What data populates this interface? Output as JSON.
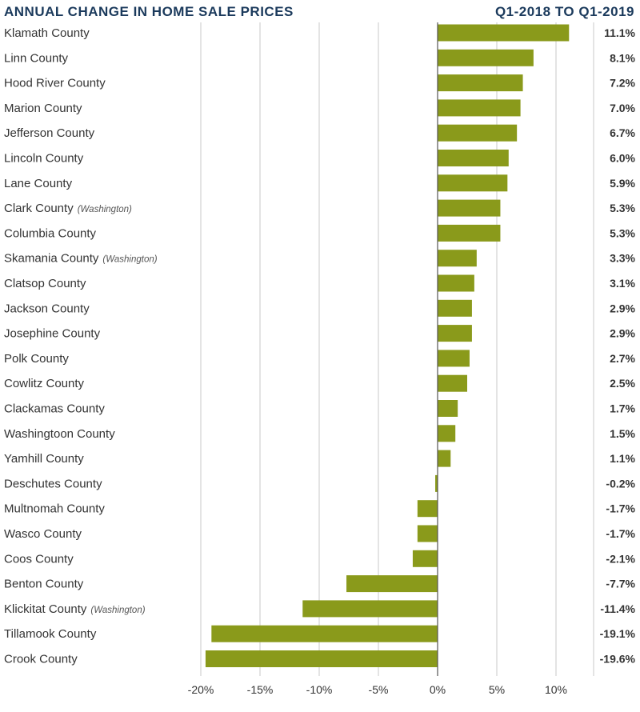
{
  "chart_data": {
    "type": "bar",
    "orientation": "horizontal",
    "title": "ANNUAL CHANGE IN HOME SALE PRICES",
    "subtitle": "Q1-2018 TO Q1-2019",
    "bar_color": "#8a9a1b",
    "title_color": "#1b3a5c",
    "xlim": [
      -20,
      12
    ],
    "xticks": [
      -20,
      -15,
      -10,
      -5,
      0,
      5,
      10
    ],
    "xtick_labels": [
      "-20%",
      "-15%",
      "-10%",
      "-5%",
      "0%",
      "5%",
      "10%"
    ],
    "grid": true,
    "categories": [
      {
        "name": "Klamath County",
        "note": "",
        "value": 11.1,
        "label": "11.1%"
      },
      {
        "name": "Linn County",
        "note": "",
        "value": 8.1,
        "label": "8.1%"
      },
      {
        "name": "Hood River County",
        "note": "",
        "value": 7.2,
        "label": "7.2%"
      },
      {
        "name": "Marion County",
        "note": "",
        "value": 7.0,
        "label": "7.0%"
      },
      {
        "name": "Jefferson County",
        "note": "",
        "value": 6.7,
        "label": "6.7%"
      },
      {
        "name": "Lincoln County",
        "note": "",
        "value": 6.0,
        "label": "6.0%"
      },
      {
        "name": "Lane County",
        "note": "",
        "value": 5.9,
        "label": "5.9%"
      },
      {
        "name": "Clark County",
        "note": "(Washington)",
        "value": 5.3,
        "label": "5.3%"
      },
      {
        "name": "Columbia County",
        "note": "",
        "value": 5.3,
        "label": "5.3%"
      },
      {
        "name": "Skamania County",
        "note": "(Washington)",
        "value": 3.3,
        "label": "3.3%"
      },
      {
        "name": "Clatsop County",
        "note": "",
        "value": 3.1,
        "label": "3.1%"
      },
      {
        "name": "Jackson County",
        "note": "",
        "value": 2.9,
        "label": "2.9%"
      },
      {
        "name": "Josephine County",
        "note": "",
        "value": 2.9,
        "label": "2.9%"
      },
      {
        "name": "Polk County",
        "note": "",
        "value": 2.7,
        "label": "2.7%"
      },
      {
        "name": "Cowlitz County",
        "note": "",
        "value": 2.5,
        "label": "2.5%"
      },
      {
        "name": "Clackamas County",
        "note": "",
        "value": 1.7,
        "label": "1.7%"
      },
      {
        "name": "Washingtoon County",
        "note": "",
        "value": 1.5,
        "label": "1.5%"
      },
      {
        "name": "Yamhill County",
        "note": "",
        "value": 1.1,
        "label": "1.1%"
      },
      {
        "name": "Deschutes County",
        "note": "",
        "value": -0.2,
        "label": "-0.2%"
      },
      {
        "name": "Multnomah County",
        "note": "",
        "value": -1.7,
        "label": "-1.7%"
      },
      {
        "name": "Wasco County",
        "note": "",
        "value": -1.7,
        "label": "-1.7%"
      },
      {
        "name": "Coos County",
        "note": "",
        "value": -2.1,
        "label": "-2.1%"
      },
      {
        "name": "Benton County",
        "note": "",
        "value": -7.7,
        "label": "-7.7%"
      },
      {
        "name": "Klickitat County",
        "note": "(Washington)",
        "value": -11.4,
        "label": "-11.4%"
      },
      {
        "name": "Tillamook County",
        "note": "",
        "value": -19.1,
        "label": "-19.1%"
      },
      {
        "name": "Crook County",
        "note": "",
        "value": -19.6,
        "label": "-19.6%"
      }
    ]
  }
}
